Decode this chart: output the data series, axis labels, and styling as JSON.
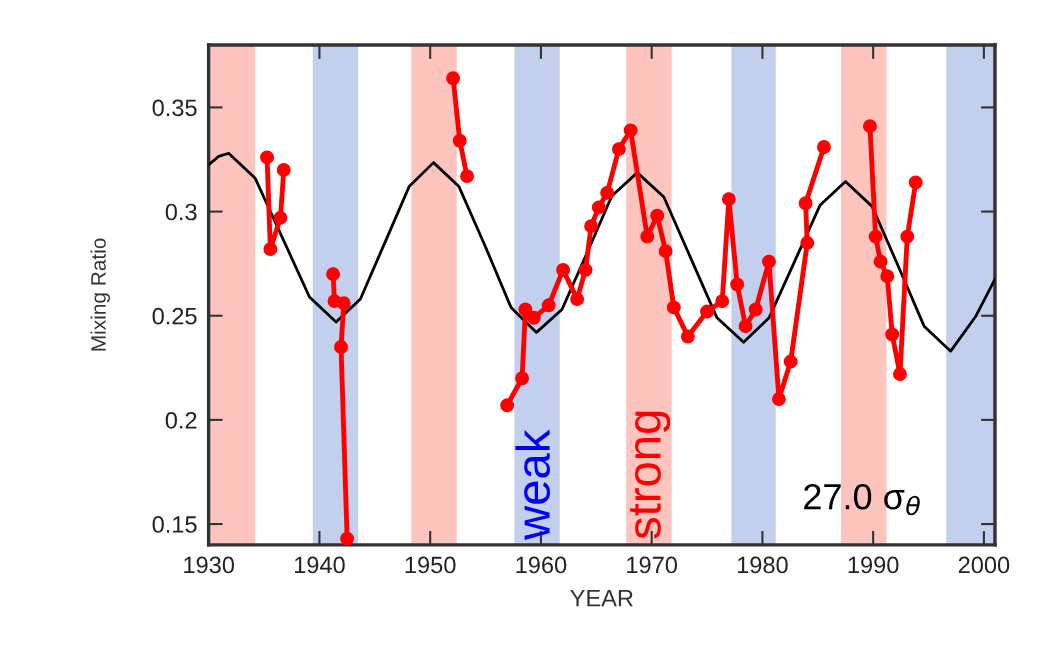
{
  "chart_data": {
    "type": "line",
    "xlabel": "YEAR",
    "ylabel": "Mixing Ratio",
    "xlim": [
      1930,
      2001
    ],
    "ylim": [
      0.14,
      0.38
    ],
    "xticks": [
      1930,
      1940,
      1950,
      1960,
      1970,
      1980,
      1990,
      2000
    ],
    "yticks": [
      0.15,
      0.2,
      0.25,
      0.3,
      0.35
    ],
    "grid": false,
    "marker": "circle",
    "line_style": "solid",
    "series": [
      {
        "color": "#000000",
        "marker": "none",
        "x": [
          1930,
          1930.9,
          1931.8,
          1934.2,
          1936.65,
          1939.1,
          1941.5,
          1943.7,
          1945.9,
          1948.1,
          1950.3,
          1952.6,
          1955.0,
          1957.3,
          1959.6,
          1961.9,
          1964.15,
          1966.4,
          1968.7,
          1971.1,
          1973.5,
          1975.9,
          1978.3,
          1980.6,
          1982.9,
          1985.2,
          1987.5,
          1989.9,
          1992.25,
          1994.6,
          1997.0,
          1999.3,
          2001
        ],
        "values": [
          0.3225,
          0.3265,
          0.328,
          0.316,
          0.2875,
          0.259,
          0.247,
          0.258,
          0.285,
          0.312,
          0.3235,
          0.312,
          0.283,
          0.254,
          0.242,
          0.253,
          0.28,
          0.3075,
          0.3187,
          0.307,
          0.278,
          0.249,
          0.2373,
          0.249,
          0.276,
          0.303,
          0.3144,
          0.3025,
          0.274,
          0.245,
          0.233,
          0.25,
          0.2676
        ]
      },
      {
        "color": "#ff0000",
        "x": [
          1935.27,
          1935.57,
          1936.48,
          1936.78,
          1939,
          1941.23,
          1941.36,
          1942.2,
          1941.95,
          1942.5,
          1947,
          1952.07,
          1952.67,
          1953.33,
          1955,
          1956.95,
          1958.3,
          1958.6,
          1959.36,
          1960.7,
          1962.0,
          1963.27,
          1964.03,
          1964.53,
          1965.23,
          1965.98,
          1967.04,
          1968.1,
          1969.6,
          1970.5,
          1971.26,
          1972.0,
          1973.27,
          1975.0,
          1976.37,
          1976.97,
          1977.72,
          1978.48,
          1979.39,
          1980.59,
          1981.49,
          1982.55,
          1984.05,
          1983.9,
          1985.56,
          1987.5,
          1989.71,
          1990.22,
          1990.67,
          1991.27,
          1991.72,
          1992.42,
          1993.08,
          1993.84
        ],
        "values": [
          0.326,
          0.282,
          0.297,
          0.32,
          null,
          0.27,
          0.257,
          0.256,
          0.235,
          0.143,
          null,
          0.364,
          0.334,
          0.317,
          null,
          0.207,
          0.22,
          0.253,
          0.249,
          0.255,
          0.272,
          0.258,
          0.272,
          0.293,
          0.302,
          0.309,
          0.33,
          0.339,
          0.288,
          0.298,
          0.281,
          0.254,
          0.24,
          0.252,
          0.257,
          0.306,
          0.265,
          0.245,
          0.253,
          0.276,
          0.21,
          0.228,
          0.285,
          0.304,
          0.331,
          null,
          0.341,
          0.288,
          0.276,
          0.269,
          0.241,
          0.222,
          0.288,
          0.314
        ]
      }
    ],
    "bands": [
      {
        "axis": "x",
        "from": 1930.2,
        "to": 1934.2,
        "color": "#fdc5be"
      },
      {
        "axis": "x",
        "from": 1939.4,
        "to": 1943.5,
        "color": "#c2d0ee"
      },
      {
        "axis": "x",
        "from": 1948.3,
        "to": 1952.4,
        "color": "#fdc5be"
      },
      {
        "axis": "x",
        "from": 1957.6,
        "to": 1961.7,
        "color": "#c2d0ee"
      },
      {
        "axis": "x",
        "from": 1967.7,
        "to": 1971.8,
        "color": "#fdc5be"
      },
      {
        "axis": "x",
        "from": 1977.2,
        "to": 1981.2,
        "color": "#c2d0ee"
      },
      {
        "axis": "x",
        "from": 1987.1,
        "to": 1991.2,
        "color": "#fdc5be"
      },
      {
        "axis": "x",
        "from": 1996.6,
        "to": 2001,
        "color": "#c2d0ee"
      }
    ],
    "annotations": [
      "weak",
      "strong",
      "27.0 σ$_{θ}$"
    ]
  }
}
